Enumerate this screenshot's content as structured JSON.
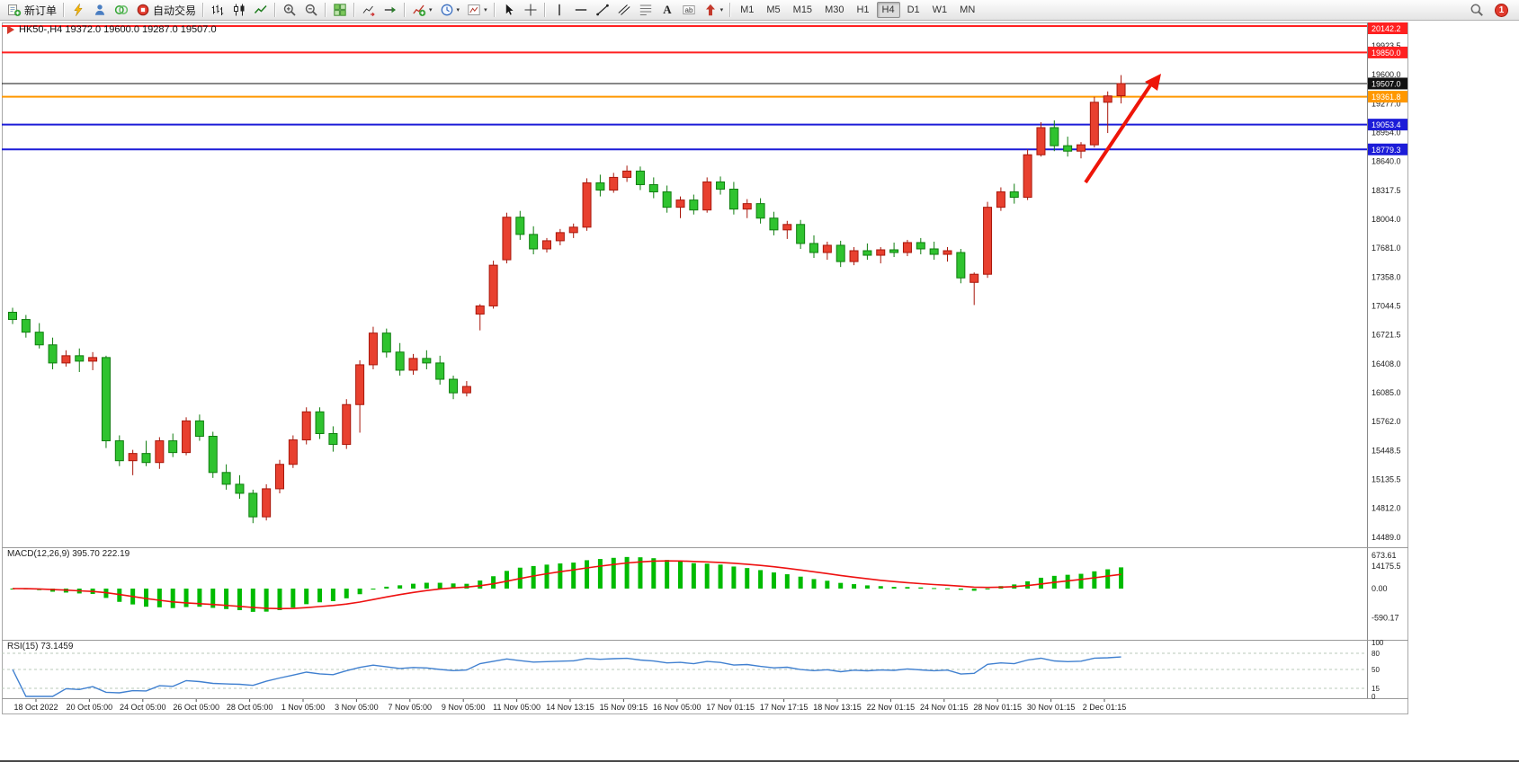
{
  "toolbar": {
    "groups": [
      {
        "items": [
          {
            "icon": "new-order",
            "label": "新订单",
            "name": "new-order-button"
          }
        ]
      },
      {
        "items": [
          {
            "icon": "lightning",
            "name": "quick-trade-button"
          },
          {
            "icon": "person",
            "name": "profile-button"
          },
          {
            "icon": "community",
            "name": "community-button"
          },
          {
            "icon": "autotrade",
            "label": "自动交易",
            "name": "autotrade-button"
          }
        ]
      },
      {
        "items": [
          {
            "icon": "chart-bars",
            "name": "bar-chart-mode-button"
          },
          {
            "icon": "chart-candles",
            "name": "candle-chart-mode-button"
          },
          {
            "icon": "chart-line",
            "name": "line-chart-mode-button"
          }
        ]
      },
      {
        "items": [
          {
            "icon": "zoom-in",
            "name": "zoom-in-button"
          },
          {
            "icon": "zoom-out",
            "name": "zoom-out-button"
          }
        ]
      },
      {
        "items": [
          {
            "icon": "tile-windows",
            "name": "tile-windows-button"
          }
        ]
      },
      {
        "items": [
          {
            "icon": "chart-shift",
            "name": "chart-shift-button"
          },
          {
            "icon": "auto-scroll",
            "name": "auto-scroll-button"
          }
        ]
      },
      {
        "items": [
          {
            "icon": "add-indicator",
            "dropdown": true,
            "name": "indicators-button"
          },
          {
            "icon": "clock",
            "dropdown": true,
            "name": "periods-button"
          },
          {
            "icon": "objects",
            "dropdown": true,
            "name": "templates-button"
          }
        ]
      },
      {
        "items": [
          {
            "icon": "cursor",
            "name": "cursor-button"
          },
          {
            "icon": "crosshair",
            "name": "crosshair-button"
          }
        ]
      },
      {
        "items": [
          {
            "icon": "vline",
            "name": "vertical-line-button"
          },
          {
            "icon": "hline",
            "name": "horizontal-line-button"
          },
          {
            "icon": "trendline",
            "name": "trendline-button"
          },
          {
            "icon": "channel",
            "name": "channel-button"
          },
          {
            "icon": "fibo",
            "name": "fibonacci-button"
          },
          {
            "icon": "text",
            "name": "text-button"
          },
          {
            "icon": "label",
            "name": "text-label-button"
          },
          {
            "icon": "arrows",
            "dropdown": true,
            "name": "arrows-button"
          }
        ]
      }
    ],
    "timeframes": [
      "M1",
      "M5",
      "M15",
      "M30",
      "H1",
      "H4",
      "D1",
      "W1",
      "MN"
    ],
    "active_timeframe": "H4",
    "right": {
      "badge": "1"
    }
  },
  "chart_data": {
    "type": "candlestick",
    "symbol": "HK50-",
    "timeframe": "H4",
    "title": "HK50-,H4 19372.0 19600.0 19287.0 19507.0",
    "last_ohlc": {
      "open": 19372.0,
      "high": 19600.0,
      "low": 19287.0,
      "close": 19507.0
    },
    "y_axis_range": [
      14175.5,
      19923.5
    ],
    "y_ticks": [
      "19923.5",
      "19600.0",
      "19277.0",
      "18954.0",
      "18640.0",
      "18317.5",
      "18004.0",
      "17681.0",
      "17358.0",
      "17044.5",
      "16721.5",
      "16408.0",
      "16085.0",
      "15762.0",
      "15448.5",
      "15135.5",
      "14812.0",
      "14489.0",
      "14175.5"
    ],
    "x_labels": [
      "18 Oct 2022",
      "20 Oct 05:00",
      "24 Oct 05:00",
      "26 Oct 05:00",
      "28 Oct 05:00",
      "1 Nov 05:00",
      "3 Nov 05:00",
      "7 Nov 05:00",
      "9 Nov 05:00",
      "11 Nov 05:00",
      "14 Nov 13:15",
      "15 Nov 09:15",
      "16 Nov 05:00",
      "17 Nov 01:15",
      "17 Nov 17:15",
      "18 Nov 13:15",
      "22 Nov 01:15",
      "24 Nov 01:15",
      "28 Nov 01:15",
      "30 Nov 01:15",
      "2 Dec 01:15"
    ],
    "candles": [
      [
        16980,
        17030,
        16850,
        16900
      ],
      [
        16900,
        16950,
        16700,
        16760
      ],
      [
        16760,
        16860,
        16580,
        16620
      ],
      [
        16620,
        16700,
        16350,
        16420
      ],
      [
        16420,
        16560,
        16380,
        16500
      ],
      [
        16500,
        16580,
        16320,
        16440
      ],
      [
        16440,
        16540,
        16340,
        16480
      ],
      [
        16480,
        16500,
        15480,
        15560
      ],
      [
        15560,
        15620,
        15280,
        15340
      ],
      [
        15340,
        15460,
        15180,
        15420
      ],
      [
        15420,
        15560,
        15280,
        15320
      ],
      [
        15320,
        15600,
        15250,
        15560
      ],
      [
        15560,
        15640,
        15380,
        15430
      ],
      [
        15430,
        15820,
        15400,
        15780
      ],
      [
        15780,
        15850,
        15560,
        15610
      ],
      [
        15610,
        15660,
        15150,
        15210
      ],
      [
        15210,
        15300,
        15020,
        15080
      ],
      [
        15080,
        15180,
        14920,
        14980
      ],
      [
        14980,
        15020,
        14650,
        14720
      ],
      [
        14720,
        15080,
        14680,
        15030
      ],
      [
        15030,
        15350,
        14980,
        15300
      ],
      [
        15300,
        15620,
        15260,
        15570
      ],
      [
        15570,
        15930,
        15520,
        15880
      ],
      [
        15880,
        15930,
        15580,
        15640
      ],
      [
        15640,
        15720,
        15440,
        15520
      ],
      [
        15520,
        16020,
        15470,
        15960
      ],
      [
        15960,
        16450,
        15650,
        16400
      ],
      [
        16400,
        16820,
        16350,
        16750
      ],
      [
        16750,
        16800,
        16480,
        16540
      ],
      [
        16540,
        16640,
        16280,
        16340
      ],
      [
        16340,
        16520,
        16290,
        16470
      ],
      [
        16470,
        16560,
        16350,
        16420
      ],
      [
        16420,
        16500,
        16180,
        16240
      ],
      [
        16240,
        16280,
        16020,
        16090
      ],
      [
        16090,
        16220,
        16050,
        16160
      ],
      [
        16960,
        17070,
        16780,
        17050
      ],
      [
        17050,
        17550,
        17020,
        17500
      ],
      [
        17560,
        18080,
        17520,
        18030
      ],
      [
        18030,
        18100,
        17780,
        17840
      ],
      [
        17840,
        17930,
        17620,
        17680
      ],
      [
        17680,
        17800,
        17640,
        17770
      ],
      [
        17770,
        17900,
        17720,
        17860
      ],
      [
        17860,
        17960,
        17800,
        17920
      ],
      [
        17920,
        18460,
        17880,
        18410
      ],
      [
        18410,
        18500,
        18260,
        18330
      ],
      [
        18330,
        18520,
        18300,
        18470
      ],
      [
        18470,
        18600,
        18420,
        18540
      ],
      [
        18540,
        18590,
        18330,
        18390
      ],
      [
        18390,
        18470,
        18240,
        18310
      ],
      [
        18310,
        18380,
        18080,
        18140
      ],
      [
        18140,
        18260,
        18020,
        18220
      ],
      [
        18220,
        18280,
        18060,
        18110
      ],
      [
        18110,
        18470,
        18080,
        18420
      ],
      [
        18420,
        18480,
        18280,
        18340
      ],
      [
        18340,
        18420,
        18060,
        18120
      ],
      [
        18120,
        18230,
        18020,
        18180
      ],
      [
        18180,
        18240,
        17960,
        18020
      ],
      [
        18020,
        18090,
        17830,
        17890
      ],
      [
        17890,
        17990,
        17790,
        17950
      ],
      [
        17950,
        18000,
        17680,
        17740
      ],
      [
        17740,
        17830,
        17580,
        17640
      ],
      [
        17640,
        17760,
        17560,
        17720
      ],
      [
        17720,
        17770,
        17480,
        17540
      ],
      [
        17540,
        17700,
        17500,
        17660
      ],
      [
        17660,
        17740,
        17560,
        17610
      ],
      [
        17610,
        17700,
        17520,
        17670
      ],
      [
        17670,
        17750,
        17590,
        17640
      ],
      [
        17640,
        17780,
        17600,
        17750
      ],
      [
        17750,
        17800,
        17620,
        17680
      ],
      [
        17680,
        17760,
        17560,
        17620
      ],
      [
        17620,
        17700,
        17540,
        17660
      ],
      [
        17640,
        17680,
        17300,
        17360
      ],
      [
        17310,
        17420,
        17060,
        17400
      ],
      [
        17400,
        18200,
        17360,
        18140
      ],
      [
        18140,
        18360,
        18100,
        18310
      ],
      [
        18310,
        18400,
        18180,
        18250
      ],
      [
        18250,
        18780,
        18220,
        18720
      ],
      [
        18720,
        19080,
        18700,
        19020
      ],
      [
        19020,
        19100,
        18760,
        18820
      ],
      [
        18820,
        18920,
        18700,
        18760
      ],
      [
        18760,
        18860,
        18680,
        18830
      ],
      [
        18830,
        19360,
        18800,
        19300
      ],
      [
        19300,
        19420,
        18960,
        19370
      ],
      [
        19372,
        19600,
        19287,
        19507
      ]
    ],
    "hlines": [
      {
        "price": 20142.2,
        "label": "20142.2",
        "color": "#ff2020",
        "width": 2
      },
      {
        "price": 19850.0,
        "label": "19850.0",
        "color": "#ff2020",
        "width": 2
      },
      {
        "price": 19507.0,
        "label": "19507.0",
        "color": "#111111",
        "width": 1
      },
      {
        "price": 19361.8,
        "label": "19361.8",
        "color": "#ff9800",
        "width": 2
      },
      {
        "price": 19053.4,
        "label": "19053.4",
        "color": "#1c1cd8",
        "width": 2
      },
      {
        "price": 18779.3,
        "label": "18779.3",
        "color": "#1c1cd8",
        "width": 2
      }
    ],
    "trend_arrow": {
      "color": "#ee1508"
    },
    "macd": {
      "label": "MACD(12,26,9) 395.70 222.19",
      "params": "12,26,9",
      "main_value": "395.70",
      "signal_value": "222.19",
      "y_ticks": [
        "673.61",
        "0.00",
        "-590.17"
      ]
    },
    "rsi": {
      "label": "RSI(15) 73.1459",
      "period": "15",
      "value": "73.1459",
      "y_ticks": [
        "100",
        "80",
        "50",
        "15",
        "0"
      ],
      "levels": [
        80,
        50,
        15
      ]
    },
    "colors": {
      "up": "#e8402f",
      "up_border": "#a8170b",
      "down": "#2fc32f",
      "down_border": "#0f7d0f",
      "macd_hist": "#00bb00",
      "macd_signal": "#ee1111",
      "rsi_line": "#4080d0"
    }
  }
}
